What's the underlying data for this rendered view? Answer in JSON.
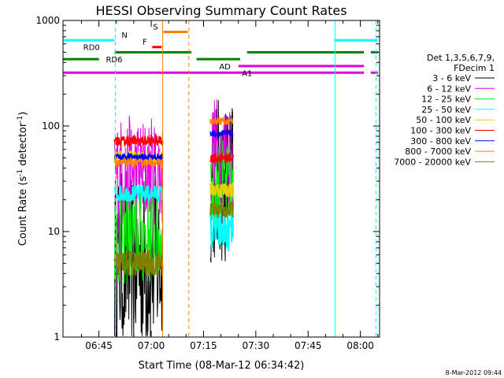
{
  "chart_data": {
    "type": "line",
    "title": "HESSI Observing Summary Count Rates",
    "xlabel": "Start Time (08-Mar-12 06:34:42)",
    "ylabel_main": "Count Rate (s",
    "ylabel_sup": "-1",
    "ylabel_mid": " detector",
    "ylabel_sup2": "-1",
    "ylabel_end": ")",
    "yscale": "log",
    "ylim": [
      1,
      1000
    ],
    "xlim_min": [
      34.7,
      105
    ],
    "y_ticks": [
      "1",
      "10",
      "100",
      "1000"
    ],
    "x_ticks": [
      {
        "label": "06:45",
        "min": 45
      },
      {
        "label": "07:00",
        "min": 60
      },
      {
        "label": "07:15",
        "min": 75
      },
      {
        "label": "07:30",
        "min": 90
      },
      {
        "label": "07:45",
        "min": 105
      },
      {
        "label": "08:00",
        "min": 120
      }
    ],
    "legend_header": [
      "Det 1,3,5,6,7,9,",
      "FDecim 1"
    ],
    "series": [
      {
        "name": "3 - 6 keV",
        "color": "#000000",
        "level1": 5,
        "spread1": 0.55,
        "level2": 30,
        "spread2": 0.5
      },
      {
        "name": "6 - 12 keV",
        "color": "#e000e0",
        "level1": 35,
        "spread1": 0.35,
        "level2": 55,
        "spread2": 0.35
      },
      {
        "name": "12 - 25 keV",
        "color": "#00ee00",
        "level1": 9,
        "spread1": 0.3,
        "level2": 25,
        "spread2": 0.3
      },
      {
        "name": "25 - 50 keV",
        "color": "#00ffff",
        "level1": 23,
        "spread1": 0.05,
        "level2": 10,
        "spread2": 0.12
      },
      {
        "name": "50 - 100 keV",
        "color": "#e8d000",
        "level1": 50,
        "spread1": 0.04,
        "level2": 25,
        "spread2": 0.05
      },
      {
        "name": "100 - 300 keV",
        "color": "#ff0000",
        "level1": 72,
        "spread1": 0.03,
        "level2": 50,
        "spread2": 0.03
      },
      {
        "name": "300 - 800 keV",
        "color": "#0000ff",
        "level1": 51,
        "spread1": 0.02,
        "level2": 85,
        "spread2": 0.02
      },
      {
        "name": "800 - 7000 keV",
        "color": "#ff8000",
        "level1": 45,
        "spread1": 0.02,
        "level2": 110,
        "spread2": 0.02
      },
      {
        "name": "7000 - 20000 keV",
        "color": "#808000",
        "level1": 5,
        "spread1": 0.08,
        "level2": 16,
        "spread2": 0.05
      }
    ],
    "intervals_min": [
      [
        49.5,
        63.3
      ],
      [
        77.0,
        83.5
      ]
    ],
    "flags": [
      {
        "label": "N",
        "color": "#00ffff",
        "y": 650,
        "segments": [
          [
            34.7,
            49.5
          ],
          [
            112.5,
            125
          ]
        ],
        "label_min": 51.5
      },
      {
        "label": "S",
        "color": "#ff8000",
        "y": 780,
        "segments": [
          [
            63.5,
            70.5
          ]
        ],
        "label_min": 60.5
      },
      {
        "label": "F",
        "color": "#ff0000",
        "y": 560,
        "segments": [
          [
            60.3,
            63
          ]
        ],
        "label_min": 57.5
      },
      {
        "label": "RD0",
        "color": "#008000",
        "y": 500,
        "segments": [
          [
            49.5,
            71.5
          ],
          [
            87.5,
            121
          ],
          [
            123,
            125
          ]
        ],
        "label_min": 40.5
      },
      {
        "label": "RD6",
        "color": "#008000",
        "y": 430,
        "segments": [
          [
            34.7,
            45
          ],
          [
            73,
            85.5
          ]
        ],
        "label_min": 47
      },
      {
        "label": "AD",
        "color": "#e000e0",
        "y": 370,
        "segments": [
          [
            85,
            121
          ]
        ],
        "label_min": 79.5
      },
      {
        "label": "A1",
        "color": "#e000e0",
        "y": 320,
        "segments": [
          [
            34.7,
            121
          ],
          [
            123,
            125
          ]
        ],
        "label_min": 86
      }
    ],
    "vlines": [
      {
        "min": 34.7,
        "color": "#00ffff",
        "dashed": false
      },
      {
        "min": 49.7,
        "color": "#00ffff",
        "dashed": true
      },
      {
        "min": 63.3,
        "color": "#ff8000",
        "dashed": false
      },
      {
        "min": 70.8,
        "color": "#ff8000",
        "dashed": true
      },
      {
        "min": 112.7,
        "color": "#00ffff",
        "dashed": false
      },
      {
        "min": 124.5,
        "color": "#00ffff",
        "dashed": true
      }
    ],
    "x_range_min": [
      34.7,
      125.5
    ],
    "grid": false,
    "legend_position": "right"
  },
  "footer_date": "8-Mar-2012 09:44"
}
